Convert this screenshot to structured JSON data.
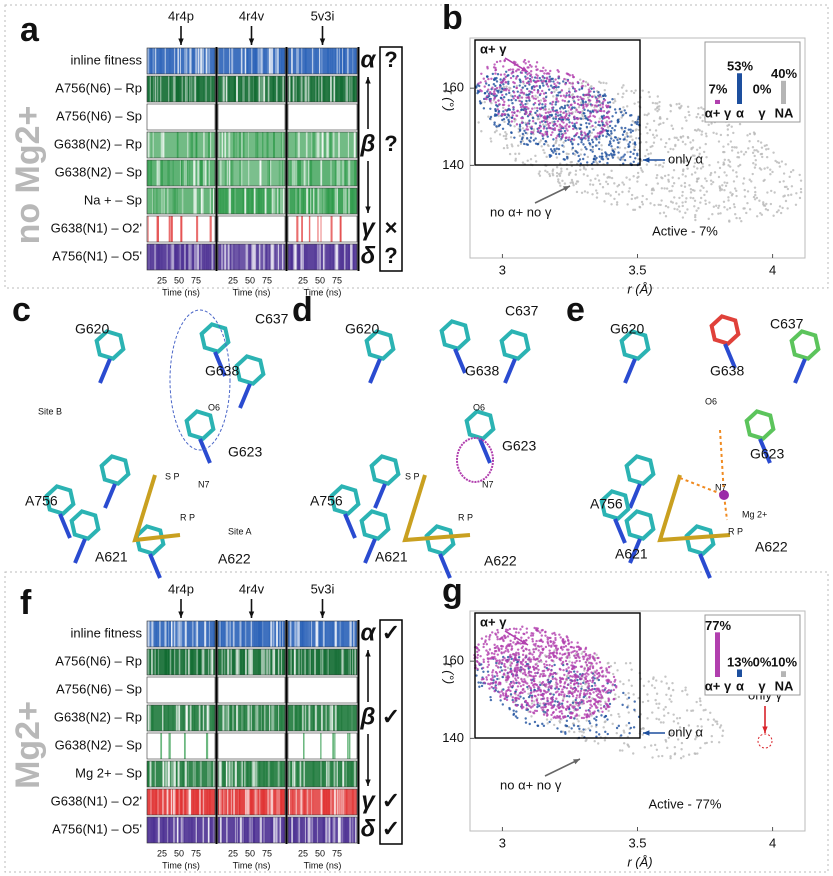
{
  "figure": {
    "panel_a": {
      "letter": "a",
      "side_label": "no Mg2+",
      "structures": [
        "4r4p",
        "4r4v",
        "5v3i"
      ],
      "rows": [
        "inline  fitness",
        "A756(N6) – Rp",
        "A756(N6) – Sp",
        "G638(N2) – Rp",
        "G638(N2) – Sp",
        "Na + – Sp",
        "G638(N1) – O2'",
        "A756(N1) – O5'"
      ],
      "row_colors": [
        "#2a62b8",
        "#0f6a30",
        "#0f6a30",
        "#2e9a4a",
        "#2e9a4a",
        "#2e9a4a",
        "#e03030",
        "#4b2f92"
      ],
      "groups": [
        {
          "symbol": "α",
          "color": "#1d4f9e",
          "verdict": "?",
          "verdict_color": "#1d4f9e"
        },
        {
          "symbol": "β",
          "color": "#2e8a4a",
          "verdict": "?",
          "verdict_color": "#1f6f3a"
        },
        {
          "symbol": "γ",
          "color": "#d9232a",
          "verdict": "×",
          "verdict_color": "#c42a7a"
        },
        {
          "symbol": "δ",
          "color": "#4b2f92",
          "verdict": "?",
          "verdict_color": "#4b2f92"
        }
      ],
      "time_ticks": [
        25,
        50,
        75
      ],
      "time_label": "Time (ns)"
    },
    "panel_b": {
      "letter": "b",
      "x_label": "r (Å)",
      "y_label": "τ (°)",
      "xlim": [
        2.88,
        4.12
      ],
      "ylim": [
        116,
        173
      ],
      "xticks": [
        3,
        3.5,
        4
      ],
      "yticks": [
        140,
        160
      ],
      "annotations": {
        "alpha_gamma": "α+ γ",
        "only_alpha": "only α",
        "neither": "no α+ no γ",
        "active": "Active - 7%"
      },
      "inset": {
        "categories": [
          "α+ γ",
          "α",
          "γ",
          "NA"
        ],
        "values": [
          7,
          53,
          0,
          40
        ],
        "value_labels": [
          "7%",
          "53%",
          "0%",
          "40%"
        ],
        "colors": [
          "#b13fae",
          "#1d4f9e",
          "#d9232a",
          "#b5b5b5"
        ]
      }
    },
    "panel_c": {
      "letter": "c",
      "labels": [
        "G620",
        "C637",
        "G638",
        "O6",
        "Site B",
        "G623",
        "S P",
        "N7",
        "R P",
        "Site A",
        "A756",
        "A621",
        "A622"
      ]
    },
    "panel_d": {
      "letter": "d",
      "labels": [
        "G620",
        "C637",
        "G638",
        "O6",
        "G623",
        "S P",
        "N7",
        "R P",
        "A756",
        "A621",
        "A622"
      ]
    },
    "panel_e": {
      "letter": "e",
      "labels": [
        "G620",
        "C637",
        "G638",
        "O6",
        "G623",
        "N7",
        "Mg 2+",
        "R P",
        "A756",
        "A621",
        "A622"
      ]
    },
    "panel_f": {
      "letter": "f",
      "side_label": "Mg2+",
      "structures": [
        "4r4p",
        "4r4v",
        "5v3i"
      ],
      "rows": [
        "inline  fitness",
        "A756(N6) – Rp",
        "A756(N6) – Sp",
        "G638(N2) – Rp",
        "G638(N2) – Sp",
        "Mg 2+ – Sp",
        "G638(N1) – O2'",
        "A756(N1) – O5'"
      ],
      "row_colors": [
        "#2a62b8",
        "#0f6a30",
        "#0f6a30",
        "#1e7a3c",
        "#2e9a4a",
        "#1e7a3c",
        "#e03030",
        "#4b2f92"
      ],
      "groups": [
        {
          "symbol": "α",
          "color": "#1d4f9e",
          "verdict": "✓",
          "verdict_color": "#1d4f9e"
        },
        {
          "symbol": "β",
          "color": "#2e8a4a",
          "verdict": "✓",
          "verdict_color": "#1f6f3a"
        },
        {
          "symbol": "γ",
          "color": "#d9232a",
          "verdict": "✓",
          "verdict_color": "#c42a7a"
        },
        {
          "symbol": "δ",
          "color": "#4b2f92",
          "verdict": "✓",
          "verdict_color": "#4b2f92"
        }
      ],
      "time_ticks": [
        25,
        50,
        75
      ],
      "time_label": "Time (ns)"
    },
    "panel_g": {
      "letter": "g",
      "x_label": "r (Å)",
      "y_label": "τ (°)",
      "xlim": [
        2.88,
        4.12
      ],
      "ylim": [
        116,
        173
      ],
      "xticks": [
        3,
        3.5,
        4
      ],
      "yticks": [
        140,
        160
      ],
      "annotations": {
        "alpha_gamma": "α+ γ",
        "only_alpha": "only α",
        "only_gamma": "only γ",
        "neither": "no α+ no γ",
        "active": "Active - 77%"
      },
      "inset": {
        "categories": [
          "α+ γ",
          "α",
          "γ",
          "NA"
        ],
        "values": [
          77,
          13,
          0,
          10
        ],
        "value_labels": [
          "77%",
          "13%",
          "0%",
          "10%"
        ],
        "colors": [
          "#b13fae",
          "#1d4f9e",
          "#d9232a",
          "#b5b5b5"
        ]
      }
    }
  }
}
